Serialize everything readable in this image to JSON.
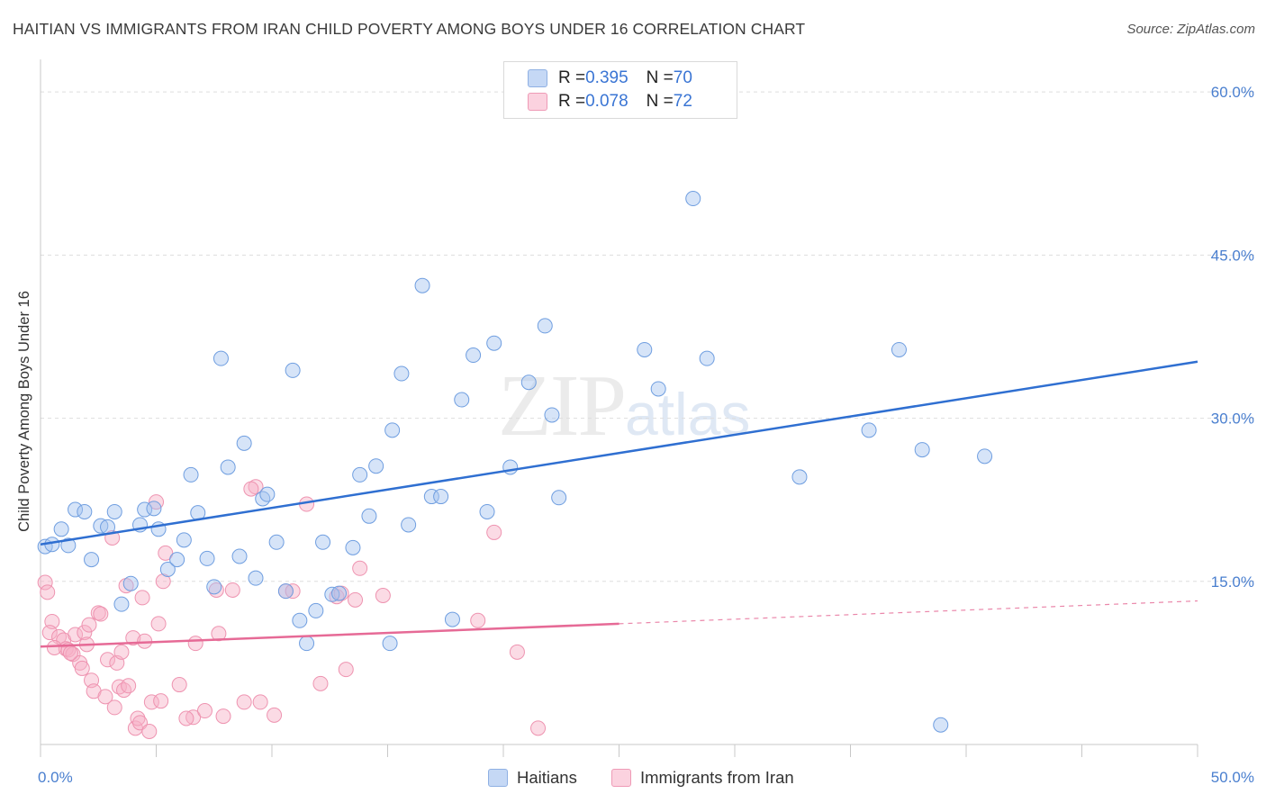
{
  "title": "HAITIAN VS IMMIGRANTS FROM IRAN CHILD POVERTY AMONG BOYS UNDER 16 CORRELATION CHART",
  "source": "Source: ZipAtlas.com",
  "watermark": {
    "big": "ZIP",
    "small": "atlas"
  },
  "legend": {
    "rows": [
      {
        "r_label": "R = ",
        "r_value": "0.395",
        "n_label": "N = ",
        "n_value": "70",
        "color": "#a9c4ef"
      },
      {
        "r_label": "R = ",
        "r_value": "0.078",
        "n_label": "N = ",
        "n_value": "72",
        "color": "#f6b7c9"
      }
    ]
  },
  "bottom_legend": [
    {
      "label": "Haitians",
      "color": "#a9c4ef"
    },
    {
      "label": "Immigrants from Iran",
      "color": "#f6b7c9"
    }
  ],
  "colors": {
    "blue_fill": "rgba(165,195,240,0.45)",
    "blue_stroke": "#6f9ee0",
    "blue_line": "#2f6fd1",
    "pink_fill": "rgba(246,176,198,0.45)",
    "pink_stroke": "#ee93b0",
    "pink_line": "#e66a96",
    "grid": "#dddddd",
    "tick_text": "#4a7fcf"
  },
  "chart_data": {
    "type": "scatter",
    "title": "HAITIAN VS IMMIGRANTS FROM IRAN CHILD POVERTY AMONG BOYS UNDER 16 CORRELATION CHART",
    "xlabel": "",
    "ylabel": "Child Poverty Among Boys Under 16",
    "xlim": [
      0,
      50
    ],
    "ylim": [
      0,
      62
    ],
    "x_tick_labels": [
      "0.0%",
      "50.0%"
    ],
    "y_ticks": [
      15,
      30,
      45,
      60
    ],
    "y_tick_labels": [
      "15.0%",
      "30.0%",
      "45.0%",
      "60.0%"
    ],
    "grid": true,
    "legend_position": "top-center",
    "series": [
      {
        "name": "Haitians",
        "points": [
          [
            0.2,
            18.2
          ],
          [
            0.5,
            18.4
          ],
          [
            0.9,
            19.8
          ],
          [
            1.2,
            18.3
          ],
          [
            1.5,
            21.6
          ],
          [
            1.9,
            21.4
          ],
          [
            2.2,
            17.0
          ],
          [
            2.6,
            20.1
          ],
          [
            2.9,
            20.0
          ],
          [
            3.2,
            21.4
          ],
          [
            3.5,
            12.9
          ],
          [
            3.9,
            14.8
          ],
          [
            4.3,
            20.2
          ],
          [
            4.5,
            21.6
          ],
          [
            4.9,
            21.7
          ],
          [
            5.1,
            19.8
          ],
          [
            5.5,
            16.1
          ],
          [
            5.9,
            17.0
          ],
          [
            6.2,
            18.8
          ],
          [
            6.8,
            21.3
          ],
          [
            6.5,
            24.8
          ],
          [
            7.2,
            17.1
          ],
          [
            7.5,
            14.5
          ],
          [
            7.8,
            35.5
          ],
          [
            8.1,
            25.5
          ],
          [
            8.6,
            17.3
          ],
          [
            8.8,
            27.7
          ],
          [
            9.3,
            15.3
          ],
          [
            9.6,
            22.6
          ],
          [
            9.8,
            23.0
          ],
          [
            10.2,
            18.6
          ],
          [
            10.6,
            14.1
          ],
          [
            10.9,
            34.4
          ],
          [
            11.2,
            11.4
          ],
          [
            11.5,
            9.3
          ],
          [
            11.9,
            12.3
          ],
          [
            12.2,
            18.6
          ],
          [
            12.6,
            13.8
          ],
          [
            12.9,
            13.9
          ],
          [
            13.5,
            18.1
          ],
          [
            13.8,
            24.8
          ],
          [
            14.2,
            21.0
          ],
          [
            14.5,
            25.6
          ],
          [
            15.1,
            9.3
          ],
          [
            15.2,
            28.9
          ],
          [
            15.6,
            34.1
          ],
          [
            15.9,
            20.2
          ],
          [
            16.5,
            42.2
          ],
          [
            16.9,
            22.8
          ],
          [
            17.3,
            22.8
          ],
          [
            17.8,
            11.5
          ],
          [
            18.2,
            31.7
          ],
          [
            18.7,
            35.8
          ],
          [
            19.3,
            21.4
          ],
          [
            19.6,
            36.9
          ],
          [
            20.3,
            25.5
          ],
          [
            21.1,
            33.3
          ],
          [
            21.8,
            38.5
          ],
          [
            22.1,
            30.3
          ],
          [
            22.4,
            22.7
          ],
          [
            26.1,
            36.3
          ],
          [
            26.7,
            32.7
          ],
          [
            28.2,
            50.2
          ],
          [
            28.8,
            35.5
          ],
          [
            32.8,
            24.6
          ],
          [
            35.8,
            28.9
          ],
          [
            37.1,
            36.3
          ],
          [
            38.1,
            27.1
          ],
          [
            38.9,
            1.8
          ],
          [
            40.8,
            26.5
          ]
        ],
        "trend": [
          [
            0,
            18.4
          ],
          [
            50,
            35.2
          ]
        ]
      },
      {
        "name": "Immigrants from Iran",
        "points": [
          [
            0.2,
            14.9
          ],
          [
            0.3,
            14.0
          ],
          [
            0.5,
            11.3
          ],
          [
            0.4,
            10.3
          ],
          [
            0.8,
            9.9
          ],
          [
            1.0,
            9.6
          ],
          [
            1.1,
            8.8
          ],
          [
            1.2,
            8.7
          ],
          [
            1.4,
            8.3
          ],
          [
            1.5,
            10.1
          ],
          [
            1.7,
            7.5
          ],
          [
            1.8,
            7.0
          ],
          [
            1.9,
            10.3
          ],
          [
            2.0,
            9.2
          ],
          [
            2.1,
            11.0
          ],
          [
            2.2,
            5.9
          ],
          [
            2.3,
            4.9
          ],
          [
            2.5,
            12.1
          ],
          [
            2.6,
            12.0
          ],
          [
            2.8,
            4.4
          ],
          [
            2.9,
            7.8
          ],
          [
            3.1,
            19.0
          ],
          [
            3.2,
            3.4
          ],
          [
            3.3,
            7.5
          ],
          [
            3.4,
            5.3
          ],
          [
            3.5,
            8.5
          ],
          [
            3.6,
            5.0
          ],
          [
            3.7,
            14.6
          ],
          [
            3.8,
            5.4
          ],
          [
            4.0,
            9.8
          ],
          [
            4.1,
            1.5
          ],
          [
            4.2,
            2.4
          ],
          [
            4.3,
            2.0
          ],
          [
            4.4,
            13.5
          ],
          [
            4.5,
            9.5
          ],
          [
            4.7,
            1.2
          ],
          [
            4.8,
            3.9
          ],
          [
            5.0,
            22.3
          ],
          [
            5.1,
            11.1
          ],
          [
            5.2,
            4.0
          ],
          [
            5.3,
            15.0
          ],
          [
            5.4,
            17.6
          ],
          [
            6.0,
            5.5
          ],
          [
            6.6,
            2.5
          ],
          [
            6.7,
            9.3
          ],
          [
            7.1,
            3.1
          ],
          [
            7.6,
            14.2
          ],
          [
            7.7,
            10.2
          ],
          [
            7.9,
            2.6
          ],
          [
            8.3,
            14.2
          ],
          [
            8.8,
            3.9
          ],
          [
            9.3,
            23.7
          ],
          [
            9.5,
            3.9
          ],
          [
            10.1,
            2.7
          ],
          [
            10.6,
            14.1
          ],
          [
            11.5,
            22.1
          ],
          [
            12.1,
            5.6
          ],
          [
            12.8,
            13.6
          ],
          [
            13.0,
            13.9
          ],
          [
            13.2,
            6.9
          ],
          [
            13.6,
            13.3
          ],
          [
            13.8,
            16.2
          ],
          [
            14.8,
            13.7
          ],
          [
            18.9,
            11.4
          ],
          [
            19.6,
            19.5
          ],
          [
            20.6,
            8.5
          ],
          [
            21.5,
            1.5
          ],
          [
            10.9,
            14.1
          ],
          [
            9.1,
            23.5
          ],
          [
            6.3,
            2.4
          ],
          [
            1.3,
            8.4
          ],
          [
            0.6,
            8.9
          ]
        ],
        "trend": [
          [
            0,
            9.0
          ],
          [
            25,
            11.1
          ]
        ],
        "trend_dashed": [
          [
            25,
            11.1
          ],
          [
            50,
            13.2
          ]
        ]
      }
    ]
  }
}
